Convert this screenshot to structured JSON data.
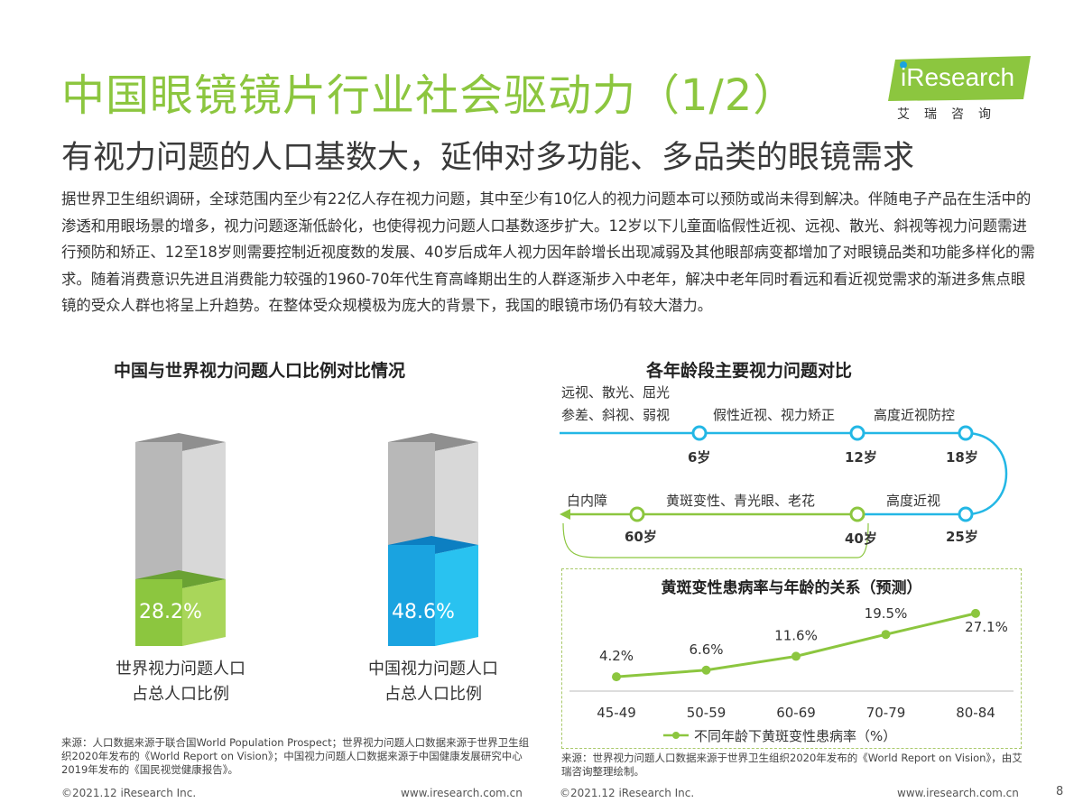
{
  "header": {
    "title": "中国眼镜镜片行业社会驱动力（1/2）",
    "subtitle": "有视力问题的人口基数大，延伸对多功能、多品类的眼镜需求"
  },
  "logo": {
    "wordmark": "iResearch",
    "cn": "艾瑞咨询"
  },
  "body": {
    "paragraph": "据世界卫生组织调研，全球范围内至少有22亿人存在视力问题，其中至少有10亿人的视力问题本可以预防或尚未得到解决。伴随电子产品在生活中的渗透和用眼场景的增多，视力问题逐渐低龄化，也使得视力问题人口基数逐步扩大。12岁以下儿童面临假性近视、远视、散光、斜视等视力问题需进行预防和矫正、12至18岁则需要控制近视度数的发展、40岁后成年人视力因年龄增长出现减弱及其他眼部病变都增加了对眼镜品类和功能多样化的需求。随着消费意识先进且消费能力较强的1960-70年代生育高峰期出生的人群逐渐步入中老年，解决中老年同时看远和看近视觉需求的渐进多焦点眼镜的受众人群也将呈上升趋势。在整体受众规模极为庞大的背景下，我国的眼镜市场仍有较大潜力。"
  },
  "left_panel": {
    "title": "中国与世界视力问题人口比例对比情况",
    "bars": [
      {
        "pct_label": "28.2%",
        "value": 28.2,
        "label_line1": "世界视力问题人口",
        "label_line2": "占总人口比例",
        "color": "#8cc63f"
      },
      {
        "pct_label": "48.6%",
        "value": 48.6,
        "label_line1": "中国视力问题人口",
        "label_line2": "占总人口比例",
        "color": "#1aa3e0"
      }
    ],
    "source": "来源：人口数据来源于联合国World Population Prospect；世界视力问题人口数据来源于世界卫生组织2020年发布的《World Report on Vision》；中国视力问题人口数据来源于中国健康发展研究中心2019年发布的《国民视觉健康报告》。"
  },
  "right_panel": {
    "title": "各年龄段主要视力问题对比",
    "timeline": {
      "top_left_line1": "远视、散光、屈光",
      "top_left_line2": "参差、斜视、弱视",
      "top_mid": "假性近视、视力矫正",
      "top_right": "高度近视防控",
      "bottom_left": "白内障",
      "bottom_mid": "黄斑变性、青光眼、老花",
      "bottom_right": "高度近视",
      "ages": [
        "6岁",
        "12岁",
        "18岁",
        "25岁",
        "40岁",
        "60岁"
      ]
    },
    "source": "来源：世界视力问题人口数据来源于世界卫生组织2020年发布的《World Report on Vision》，由艾瑞咨询整理绘制。"
  },
  "chart_data": {
    "type": "line",
    "title": "黄斑变性患病率与年龄的关系（预测）",
    "categories": [
      "45-49",
      "50-59",
      "60-69",
      "70-79",
      "80-84"
    ],
    "series": [
      {
        "name": "不同年龄下黄斑变性患病率（%）",
        "values": [
          4.2,
          6.6,
          11.6,
          19.5,
          27.1
        ],
        "labels": [
          "4.2%",
          "6.6%",
          "11.6%",
          "19.5%",
          "27.1%"
        ]
      }
    ],
    "ylim": [
      0,
      30
    ],
    "color": "#8cc63f",
    "legend": "bottom"
  },
  "footer": {
    "left_copyright": "©2021.12 iResearch Inc.",
    "left_url": "www.iresearch.com.cn",
    "right_copyright": "©2021.12 iResearch Inc.",
    "right_url": "www.iresearch.com.cn",
    "page": "8"
  }
}
